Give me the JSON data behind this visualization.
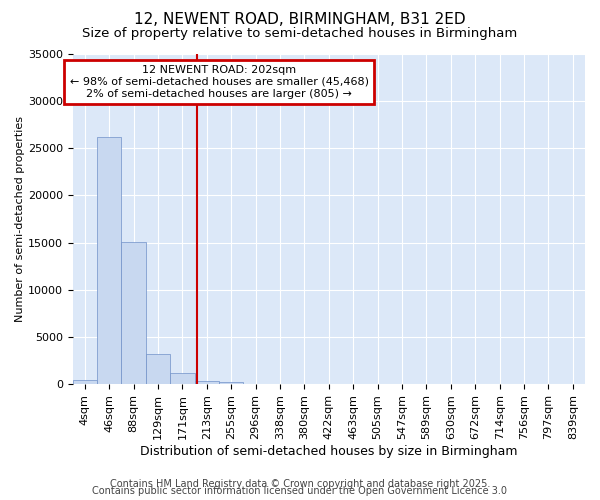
{
  "title1": "12, NEWENT ROAD, BIRMINGHAM, B31 2ED",
  "title2": "Size of property relative to semi-detached houses in Birmingham",
  "xlabel": "Distribution of semi-detached houses by size in Birmingham",
  "ylabel": "Number of semi-detached properties",
  "categories": [
    "4sqm",
    "46sqm",
    "88sqm",
    "129sqm",
    "171sqm",
    "213sqm",
    "255sqm",
    "296sqm",
    "338sqm",
    "380sqm",
    "422sqm",
    "463sqm",
    "505sqm",
    "547sqm",
    "589sqm",
    "630sqm",
    "672sqm",
    "714sqm",
    "756sqm",
    "797sqm",
    "839sqm"
  ],
  "values": [
    400,
    26200,
    15100,
    3150,
    1150,
    380,
    200,
    0,
    0,
    0,
    0,
    0,
    0,
    0,
    0,
    0,
    0,
    0,
    0,
    0,
    0
  ],
  "bar_color": "#c8d8f0",
  "bar_edge_color": "#7090c8",
  "vline_x_index": 4.6,
  "vline_color": "#cc0000",
  "annotation_line1": "12 NEWENT ROAD: 202sqm",
  "annotation_line2": "← 98% of semi-detached houses are smaller (45,468)",
  "annotation_line3": "2% of semi-detached houses are larger (805) →",
  "annotation_box_color": "#cc0000",
  "ylim": [
    0,
    35000
  ],
  "yticks": [
    0,
    5000,
    10000,
    15000,
    20000,
    25000,
    30000,
    35000
  ],
  "plot_bg_color": "#dce8f8",
  "fig_bg_color": "#ffffff",
  "grid_color": "#ffffff",
  "footer1": "Contains HM Land Registry data © Crown copyright and database right 2025.",
  "footer2": "Contains public sector information licensed under the Open Government Licence 3.0",
  "title1_fontsize": 11,
  "title2_fontsize": 9.5,
  "xlabel_fontsize": 9,
  "ylabel_fontsize": 8,
  "tick_fontsize": 8,
  "annotation_fontsize": 8,
  "footer_fontsize": 7
}
